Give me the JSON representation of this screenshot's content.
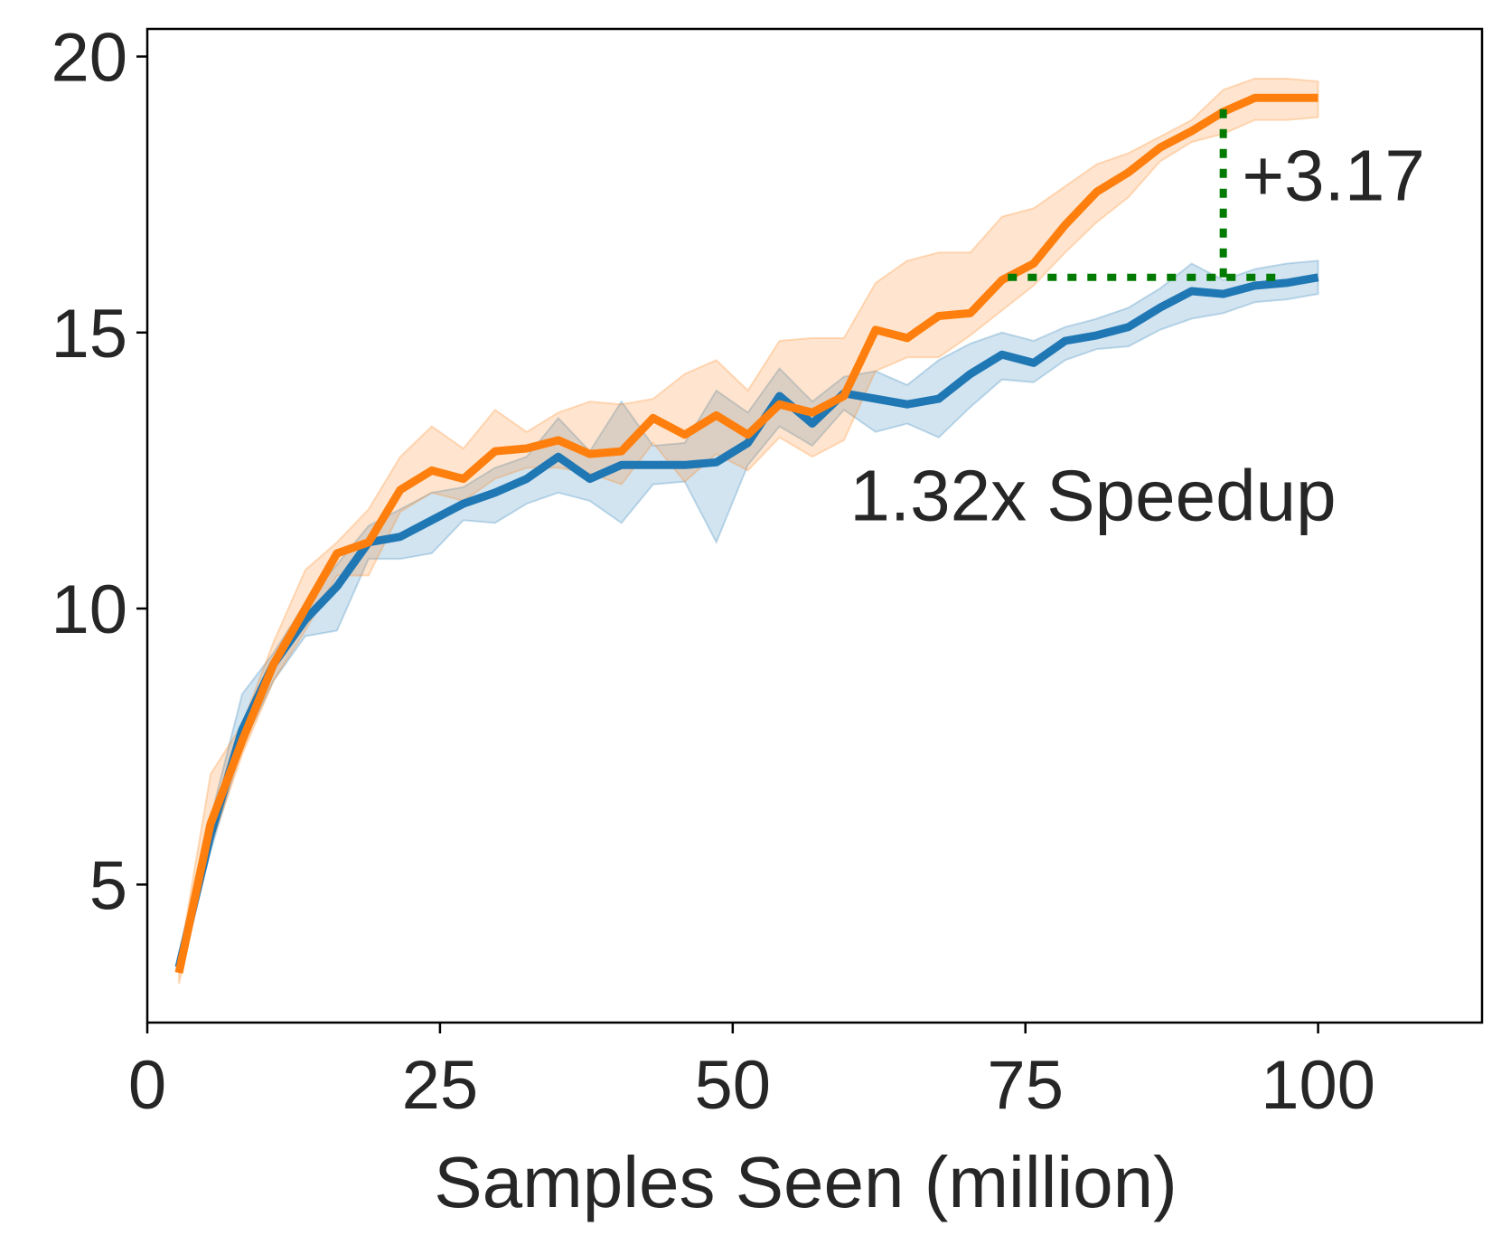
{
  "chart_data": {
    "type": "line",
    "title": "",
    "xlabel": "Samples Seen (million)",
    "ylabel": "",
    "xlim": [
      0,
      114
    ],
    "ylim": [
      2.5,
      20.5
    ],
    "xticks": [
      0,
      25,
      50,
      75,
      100
    ],
    "xtick_labels": [
      "0",
      "25",
      "50",
      "75",
      "100"
    ],
    "yticks": [
      5,
      10,
      15,
      20
    ],
    "ytick_labels": [
      "5",
      "10",
      "15",
      "20"
    ],
    "grid": false,
    "legend": "none",
    "x": [
      2.7,
      5.4,
      8.1,
      10.8,
      13.5,
      16.2,
      18.9,
      21.6,
      24.3,
      27.0,
      29.7,
      32.4,
      35.1,
      37.8,
      40.5,
      43.2,
      45.9,
      48.6,
      51.3,
      54.0,
      56.8,
      59.5,
      62.2,
      64.9,
      67.6,
      70.3,
      73.0,
      75.7,
      78.4,
      81.1,
      83.8,
      86.5,
      89.2,
      91.9,
      94.6,
      97.3,
      100.0
    ],
    "series": [
      {
        "color": "#1f77b4",
        "values": [
          3.5,
          5.9,
          7.8,
          9.0,
          9.8,
          10.4,
          11.2,
          11.3,
          11.6,
          11.9,
          12.1,
          12.35,
          12.75,
          12.35,
          12.6,
          12.6,
          12.6,
          12.65,
          13.0,
          13.85,
          13.35,
          13.9,
          13.8,
          13.7,
          13.8,
          14.25,
          14.6,
          14.45,
          14.85,
          14.95,
          15.1,
          15.45,
          15.75,
          15.7,
          15.85,
          15.9,
          16.0
        ],
        "lower": [
          3.4,
          5.6,
          7.5,
          8.7,
          9.5,
          9.6,
          10.9,
          10.9,
          11.0,
          11.6,
          11.55,
          11.9,
          12.1,
          11.95,
          11.55,
          12.25,
          12.3,
          11.2,
          12.6,
          13.3,
          12.95,
          13.6,
          13.2,
          13.35,
          13.1,
          13.65,
          14.15,
          14.1,
          14.5,
          14.7,
          14.75,
          15.05,
          15.25,
          15.35,
          15.55,
          15.6,
          15.7
        ],
        "upper": [
          3.6,
          6.2,
          8.45,
          9.2,
          10.1,
          10.8,
          11.5,
          11.8,
          12.1,
          12.2,
          12.55,
          12.75,
          13.45,
          12.85,
          13.75,
          12.95,
          13.0,
          13.95,
          13.55,
          14.35,
          13.75,
          14.2,
          14.3,
          14.05,
          14.5,
          14.8,
          15.0,
          14.85,
          15.1,
          15.25,
          15.45,
          15.8,
          16.25,
          15.95,
          16.15,
          16.25,
          16.3
        ]
      },
      {
        "color": "#ff7f0e",
        "values": [
          3.4,
          6.1,
          7.6,
          9.0,
          10.0,
          11.0,
          11.2,
          12.15,
          12.5,
          12.35,
          12.85,
          12.9,
          13.05,
          12.8,
          12.85,
          13.45,
          13.15,
          13.5,
          13.15,
          13.7,
          13.55,
          13.85,
          15.05,
          14.9,
          15.3,
          15.35,
          15.95,
          16.25,
          16.95,
          17.55,
          17.9,
          18.35,
          18.65,
          19.0,
          19.25,
          19.25,
          19.25
        ],
        "lower": [
          3.2,
          5.7,
          7.35,
          8.7,
          9.6,
          10.6,
          10.6,
          11.75,
          12.1,
          11.95,
          12.35,
          12.55,
          12.55,
          12.45,
          12.25,
          13.0,
          12.3,
          12.8,
          12.5,
          13.1,
          12.75,
          13.05,
          14.3,
          14.55,
          14.55,
          14.95,
          15.4,
          15.85,
          16.45,
          17.0,
          17.45,
          18.1,
          18.45,
          18.6,
          18.85,
          18.85,
          18.9
        ],
        "upper": [
          3.6,
          7.0,
          7.9,
          9.4,
          10.7,
          11.2,
          11.8,
          12.75,
          13.3,
          12.9,
          13.6,
          13.2,
          13.55,
          13.75,
          13.7,
          13.8,
          14.25,
          14.5,
          13.95,
          14.85,
          14.9,
          14.9,
          15.9,
          16.3,
          16.45,
          16.45,
          17.1,
          17.25,
          17.65,
          18.05,
          18.25,
          18.55,
          18.85,
          19.4,
          19.6,
          19.6,
          19.55
        ]
      }
    ],
    "annotations": [
      {
        "text": "+3.17",
        "x": 93.5,
        "y": 17.4
      },
      {
        "text": "1.32x Speedup",
        "x": 60.0,
        "y": 11.6
      }
    ],
    "reference_lines": [
      {
        "type": "horizontal",
        "y": 16.0,
        "x_from": 73.5,
        "x_to": 97.0,
        "color": "#007a00",
        "style": "dotted"
      },
      {
        "type": "vertical",
        "x": 91.9,
        "y_from": 16.0,
        "y_to": 19.2,
        "color": "#007a00",
        "style": "dotted"
      }
    ]
  }
}
